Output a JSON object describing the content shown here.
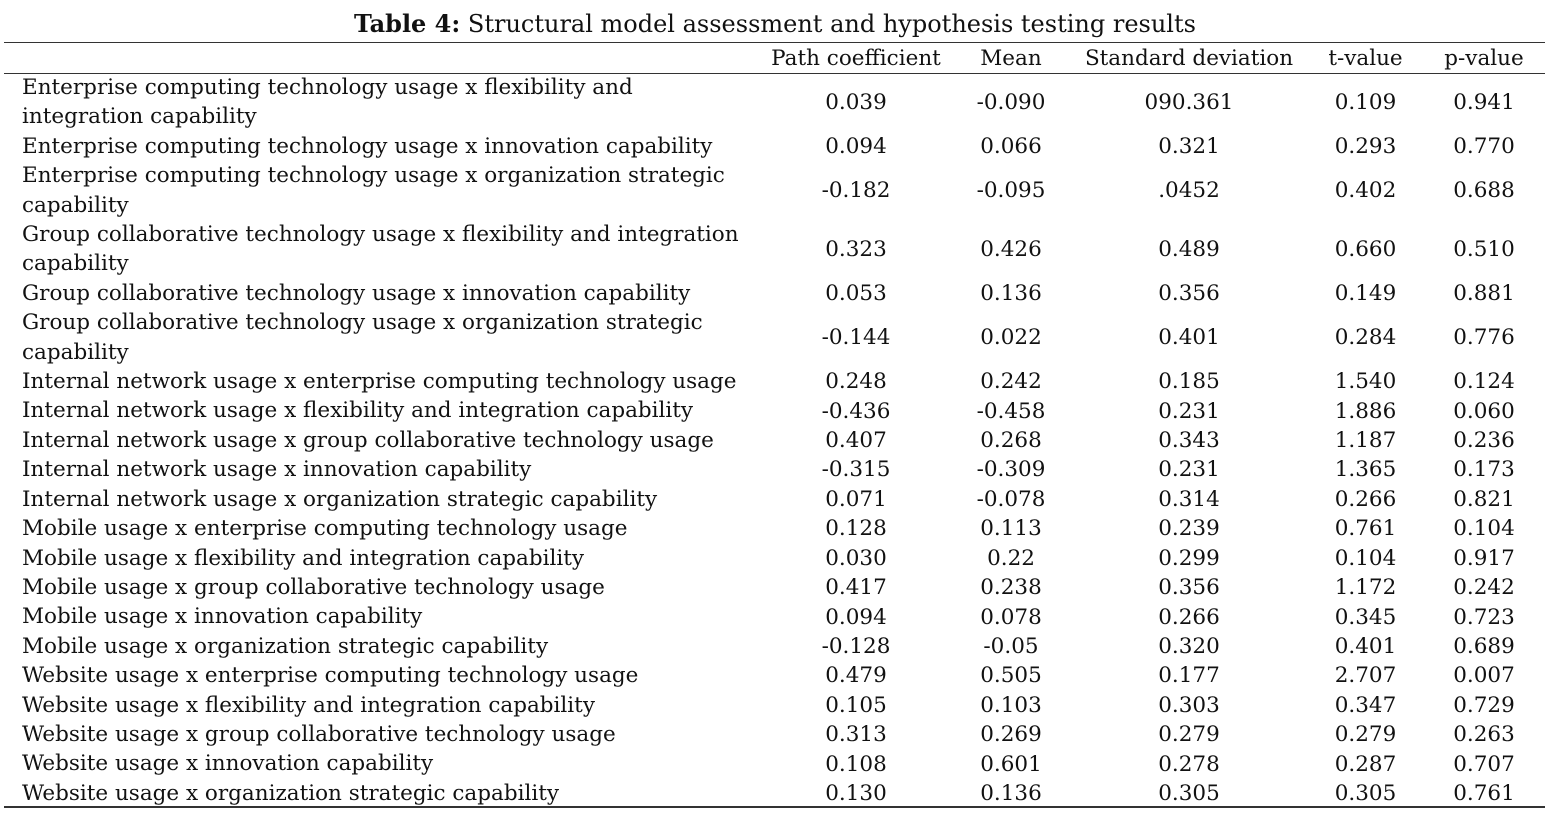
{
  "caption": {
    "label": "Table 4:",
    "text": "Structural model assessment and hypothesis testing results"
  },
  "columns": [
    "",
    "Path coefficient",
    "Mean",
    "Standard deviation",
    "t-value",
    "p-value"
  ],
  "rows": [
    {
      "label": "Enterprise computing technology usage x flexibility and integration capability",
      "path": "0.039",
      "mean": "-0.090",
      "sd": "090.361",
      "t": "0.109",
      "p": "0.941",
      "lines": 2
    },
    {
      "label": "Enterprise computing technology usage x innovation capability",
      "path": "0.094",
      "mean": "0.066",
      "sd": "0.321",
      "t": "0.293",
      "p": "0.770",
      "lines": 1
    },
    {
      "label": "Enterprise computing technology usage x organization strategic capability",
      "path": "-0.182",
      "mean": "-0.095",
      "sd": ".0452",
      "t": "0.402",
      "p": "0.688",
      "lines": 2
    },
    {
      "label": "Group collaborative technology usage x flexibility and integration capability",
      "path": "0.323",
      "mean": "0.426",
      "sd": "0.489",
      "t": "0.660",
      "p": "0.510",
      "lines": 2
    },
    {
      "label": "Group collaborative technology usage x innovation capability",
      "path": "0.053",
      "mean": "0.136",
      "sd": "0.356",
      "t": "0.149",
      "p": "0.881",
      "lines": 1
    },
    {
      "label": "Group collaborative technology usage x organization strategic capability",
      "path": "-0.144",
      "mean": "0.022",
      "sd": "0.401",
      "t": "0.284",
      "p": "0.776",
      "lines": 2
    },
    {
      "label": "Internal network usage x enterprise computing technology usage",
      "path": "0.248",
      "mean": "0.242",
      "sd": "0.185",
      "t": "1.540",
      "p": "0.124",
      "lines": 1
    },
    {
      "label": "Internal network usage x flexibility and integration capability",
      "path": "-0.436",
      "mean": "-0.458",
      "sd": "0.231",
      "t": "1.886",
      "p": "0.060",
      "lines": 1
    },
    {
      "label": "Internal network usage x group collaborative technology usage",
      "path": "0.407",
      "mean": "0.268",
      "sd": "0.343",
      "t": "1.187",
      "p": "0.236",
      "lines": 1
    },
    {
      "label": "Internal network usage x innovation capability",
      "path": "-0.315",
      "mean": "-0.309",
      "sd": "0.231",
      "t": "1.365",
      "p": "0.173",
      "lines": 1
    },
    {
      "label": "Internal network usage x organization strategic capability",
      "path": "0.071",
      "mean": "-0.078",
      "sd": "0.314",
      "t": "0.266",
      "p": "0.821",
      "lines": 1
    },
    {
      "label": "Mobile usage x enterprise computing technology usage",
      "path": "0.128",
      "mean": "0.113",
      "sd": "0.239",
      "t": "0.761",
      "p": "0.104",
      "lines": 1
    },
    {
      "label": "Mobile usage x flexibility and integration capability",
      "path": "0.030",
      "mean": "0.22",
      "sd": "0.299",
      "t": "0.104",
      "p": "0.917",
      "lines": 1
    },
    {
      "label": "Mobile usage x group collaborative technology usage",
      "path": "0.417",
      "mean": "0.238",
      "sd": "0.356",
      "t": "1.172",
      "p": "0.242",
      "lines": 1
    },
    {
      "label": "Mobile usage x innovation capability",
      "path": "0.094",
      "mean": "0.078",
      "sd": "0.266",
      "t": "0.345",
      "p": "0.723",
      "lines": 1
    },
    {
      "label": "Mobile usage x organization strategic capability",
      "path": "-0.128",
      "mean": "-0.05",
      "sd": "0.320",
      "t": "0.401",
      "p": "0.689",
      "lines": 1
    },
    {
      "label": "Website usage x enterprise computing technology usage",
      "path": "0.479",
      "mean": "0.505",
      "sd": "0.177",
      "t": "2.707",
      "p": "0.007",
      "lines": 1
    },
    {
      "label": "Website usage x flexibility and integration capability",
      "path": "0.105",
      "mean": "0.103",
      "sd": "0.303",
      "t": "0.347",
      "p": "0.729",
      "lines": 1
    },
    {
      "label": "Website usage x group collaborative technology usage",
      "path": "0.313",
      "mean": "0.269",
      "sd": "0.279",
      "t": "0.279",
      "p": "0.263",
      "lines": 1
    },
    {
      "label": "Website usage x innovation capability",
      "path": "0.108",
      "mean": "0.601",
      "sd": "0.278",
      "t": "0.287",
      "p": "0.707",
      "lines": 1
    },
    {
      "label": "Website usage x organization strategic capability",
      "path": "0.130",
      "mean": "0.136",
      "sd": "0.305",
      "t": "0.305",
      "p": "0.761",
      "lines": 1
    }
  ]
}
